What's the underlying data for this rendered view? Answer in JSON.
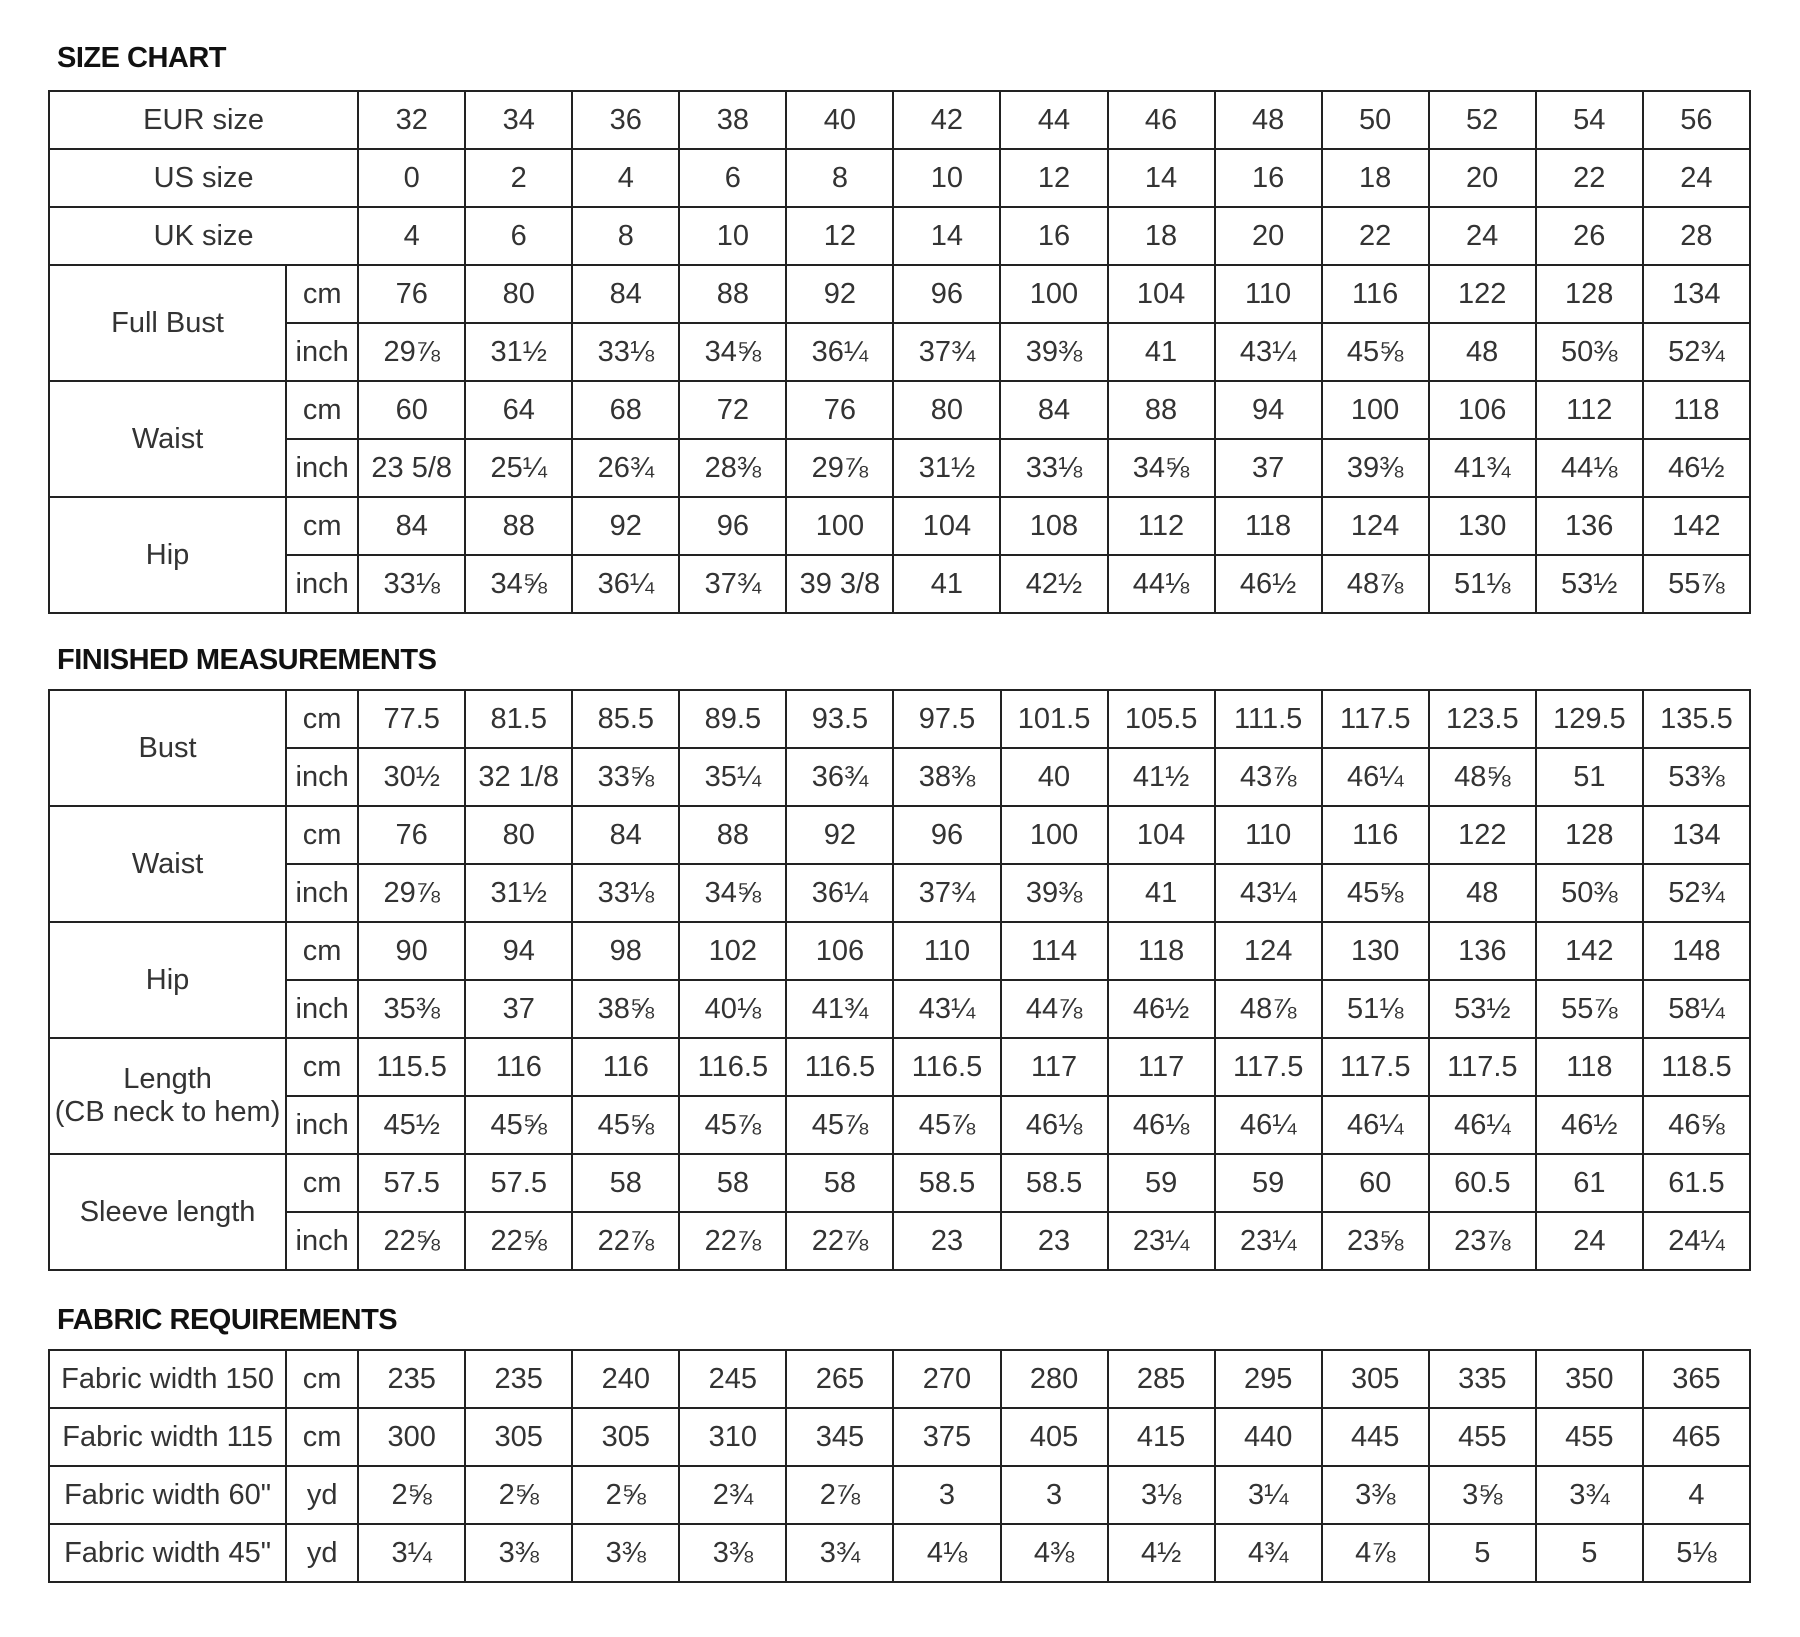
{
  "size_chart": {
    "title": "SIZE CHART",
    "header_rows": [
      {
        "label": "EUR size",
        "values": [
          "32",
          "34",
          "36",
          "38",
          "40",
          "42",
          "44",
          "46",
          "48",
          "50",
          "52",
          "54",
          "56"
        ]
      },
      {
        "label": "US size",
        "values": [
          "0",
          "2",
          "4",
          "6",
          "8",
          "10",
          "12",
          "14",
          "16",
          "18",
          "20",
          "22",
          "24"
        ]
      },
      {
        "label": "UK size",
        "values": [
          "4",
          "6",
          "8",
          "10",
          "12",
          "14",
          "16",
          "18",
          "20",
          "22",
          "24",
          "26",
          "28"
        ]
      }
    ],
    "groups": [
      {
        "label": "Full Bust",
        "rows": [
          {
            "unit": "cm",
            "values": [
              "76",
              "80",
              "84",
              "88",
              "92",
              "96",
              "100",
              "104",
              "110",
              "116",
              "122",
              "128",
              "134"
            ]
          },
          {
            "unit": "inch",
            "values": [
              "29⅞",
              "31½",
              "33⅛",
              "34⅝",
              "36¼",
              "37¾",
              "39⅜",
              "41",
              "43¼",
              "45⅝",
              "48",
              "50⅜",
              "52¾"
            ]
          }
        ]
      },
      {
        "label": "Waist",
        "rows": [
          {
            "unit": "cm",
            "values": [
              "60",
              "64",
              "68",
              "72",
              "76",
              "80",
              "84",
              "88",
              "94",
              "100",
              "106",
              "112",
              "118"
            ]
          },
          {
            "unit": "inch",
            "values": [
              "23 5/8",
              "25¼",
              "26¾",
              "28⅜",
              "29⅞",
              "31½",
              "33⅛",
              "34⅝",
              "37",
              "39⅜",
              "41¾",
              "44⅛",
              "46½"
            ]
          }
        ]
      },
      {
        "label": "Hip",
        "rows": [
          {
            "unit": "cm",
            "values": [
              "84",
              "88",
              "92",
              "96",
              "100",
              "104",
              "108",
              "112",
              "118",
              "124",
              "130",
              "136",
              "142"
            ]
          },
          {
            "unit": "inch",
            "values": [
              "33⅛",
              "34⅝",
              "36¼",
              "37¾",
              "39 3/8",
              "41",
              "42½",
              "44⅛",
              "46½",
              "48⅞",
              "51⅛",
              "53½",
              "55⅞"
            ]
          }
        ]
      }
    ]
  },
  "finished_measurements": {
    "title": "FINISHED MEASUREMENTS",
    "groups": [
      {
        "label": "Bust",
        "rows": [
          {
            "unit": "cm",
            "values": [
              "77.5",
              "81.5",
              "85.5",
              "89.5",
              "93.5",
              "97.5",
              "101.5",
              "105.5",
              "111.5",
              "117.5",
              "123.5",
              "129.5",
              "135.5"
            ]
          },
          {
            "unit": "inch",
            "values": [
              "30½",
              "32 1/8",
              "33⅝",
              "35¼",
              "36¾",
              "38⅜",
              "40",
              "41½",
              "43⅞",
              "46¼",
              "48⅝",
              "51",
              "53⅜"
            ]
          }
        ]
      },
      {
        "label": "Waist",
        "rows": [
          {
            "unit": "cm",
            "values": [
              "76",
              "80",
              "84",
              "88",
              "92",
              "96",
              "100",
              "104",
              "110",
              "116",
              "122",
              "128",
              "134"
            ]
          },
          {
            "unit": "inch",
            "values": [
              "29⅞",
              "31½",
              "33⅛",
              "34⅝",
              "36¼",
              "37¾",
              "39⅜",
              "41",
              "43¼",
              "45⅝",
              "48",
              "50⅜",
              "52¾"
            ]
          }
        ]
      },
      {
        "label": "Hip",
        "rows": [
          {
            "unit": "cm",
            "values": [
              "90",
              "94",
              "98",
              "102",
              "106",
              "110",
              "114",
              "118",
              "124",
              "130",
              "136",
              "142",
              "148"
            ]
          },
          {
            "unit": "inch",
            "values": [
              "35⅜",
              "37",
              "38⅝",
              "40⅛",
              "41¾",
              "43¼",
              "44⅞",
              "46½",
              "48⅞",
              "51⅛",
              "53½",
              "55⅞",
              "58¼"
            ]
          }
        ]
      },
      {
        "label": "Length",
        "sublabel": "(CB neck to hem)",
        "rows": [
          {
            "unit": "cm",
            "values": [
              "115.5",
              "116",
              "116",
              "116.5",
              "116.5",
              "116.5",
              "117",
              "117",
              "117.5",
              "117.5",
              "117.5",
              "118",
              "118.5"
            ]
          },
          {
            "unit": "inch",
            "values": [
              "45½",
              "45⅝",
              "45⅝",
              "45⅞",
              "45⅞",
              "45⅞",
              "46⅛",
              "46⅛",
              "46¼",
              "46¼",
              "46¼",
              "46½",
              "46⅝"
            ]
          }
        ]
      },
      {
        "label": "Sleeve length",
        "rows": [
          {
            "unit": "cm",
            "values": [
              "57.5",
              "57.5",
              "58",
              "58",
              "58",
              "58.5",
              "58.5",
              "59",
              "59",
              "60",
              "60.5",
              "61",
              "61.5"
            ]
          },
          {
            "unit": "inch",
            "values": [
              "22⅝",
              "22⅝",
              "22⅞",
              "22⅞",
              "22⅞",
              "23",
              "23",
              "23¼",
              "23¼",
              "23⅝",
              "23⅞",
              "24",
              "24¼"
            ]
          }
        ]
      }
    ]
  },
  "fabric_requirements": {
    "title": "FABRIC REQUIREMENTS",
    "rows": [
      {
        "label": "Fabric width 150",
        "unit": "cm",
        "values": [
          "235",
          "235",
          "240",
          "245",
          "265",
          "270",
          "280",
          "285",
          "295",
          "305",
          "335",
          "350",
          "365"
        ]
      },
      {
        "label": "Fabric width 115",
        "unit": "cm",
        "values": [
          "300",
          "305",
          "305",
          "310",
          "345",
          "375",
          "405",
          "415",
          "440",
          "445",
          "455",
          "455",
          "465"
        ]
      },
      {
        "label": "Fabric width 60\"",
        "unit": "yd",
        "values": [
          "2⅝",
          "2⅝",
          "2⅝",
          "2¾",
          "2⅞",
          "3",
          "3",
          "3⅛",
          "3¼",
          "3⅜",
          "3⅝",
          "3¾",
          "4"
        ]
      },
      {
        "label": "Fabric width 45\"",
        "unit": "yd",
        "values": [
          "3¼",
          "3⅜",
          "3⅜",
          "3⅜",
          "3¾",
          "4⅛",
          "4⅜",
          "4½",
          "4¾",
          "4⅞",
          "5",
          "5",
          "5⅛"
        ]
      }
    ]
  }
}
